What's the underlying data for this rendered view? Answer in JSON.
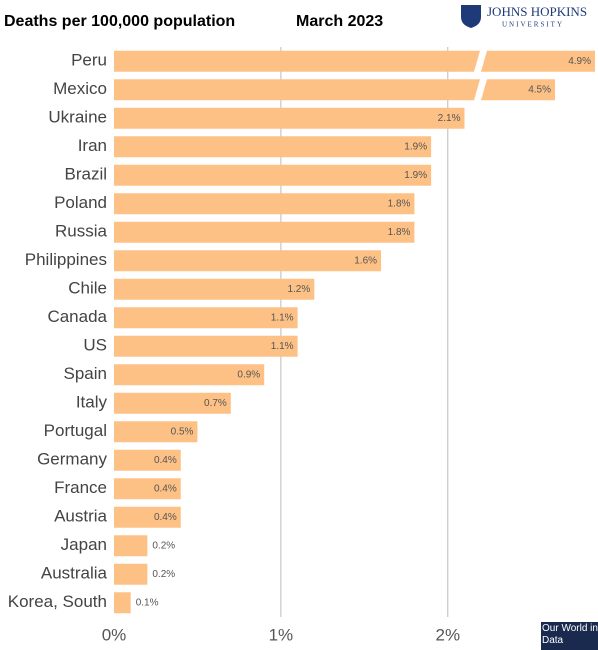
{
  "chart_data": {
    "type": "bar",
    "orientation": "horizontal",
    "title": "Deaths per 100,000 population",
    "subtitle": "March 2023",
    "logo": {
      "name": "JOHNS HOPKINS",
      "sub": "UNIVERSITY"
    },
    "source": "Our World in Data",
    "categories": [
      "Peru",
      "Mexico",
      "Ukraine",
      "Iran",
      "Brazil",
      "Poland",
      "Russia",
      "Philippines",
      "Chile",
      "Canada",
      "US",
      "Spain",
      "Italy",
      "Portugal",
      "Germany",
      "France",
      "Austria",
      "Japan",
      "Australia",
      "Korea, South"
    ],
    "values": [
      4.9,
      4.5,
      2.1,
      1.9,
      1.9,
      1.8,
      1.8,
      1.6,
      1.2,
      1.1,
      1.1,
      0.9,
      0.7,
      0.5,
      0.4,
      0.4,
      0.4,
      0.2,
      0.2,
      0.1
    ],
    "value_labels": [
      "4.9%",
      "4.5%",
      "2.1%",
      "1.9%",
      "1.9%",
      "1.8%",
      "1.8%",
      "1.6%",
      "1.2%",
      "1.1%",
      "1.1%",
      "0.9%",
      "0.7%",
      "0.5%",
      "0.4%",
      "0.4%",
      "0.4%",
      "0.2%",
      "0.2%",
      "0.1%"
    ],
    "color": "#fdc185",
    "xlim": [
      0,
      2.9
    ],
    "xticks": [
      {
        "value": 0,
        "label": "0%"
      },
      {
        "value": 1,
        "label": "1%"
      },
      {
        "value": 2,
        "label": "2%"
      }
    ],
    "grid": true
  }
}
